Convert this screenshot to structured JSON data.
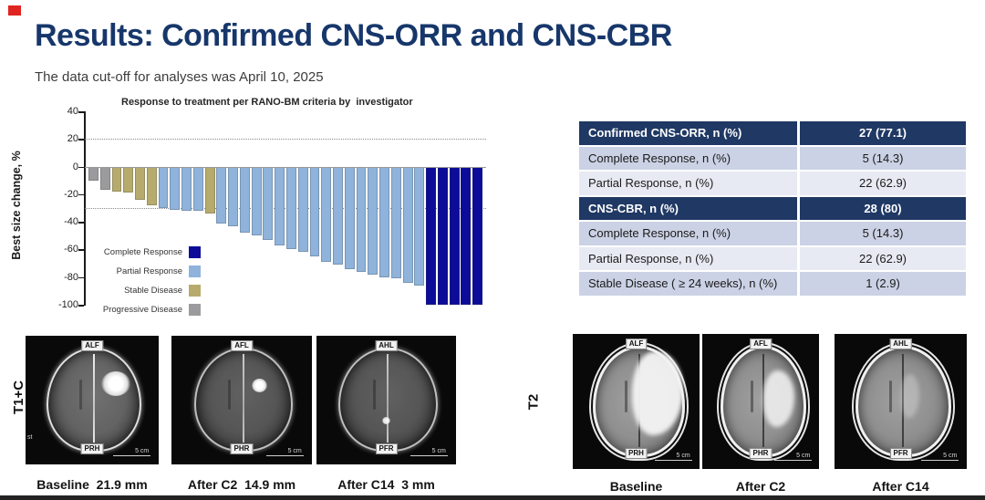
{
  "slide": {
    "title": "Results: Confirmed CNS-ORR and CNS-CBR",
    "subtitle": "The data cut-off for analyses was April 10, 2025"
  },
  "chart_data": {
    "type": "bar",
    "title": "Response to treatment per RANO-BM criteria by  investigator",
    "ylabel": "Best size change, %",
    "ylim": [
      -100,
      40
    ],
    "yticks": [
      40,
      20,
      0,
      -20,
      -40,
      -60,
      -80,
      -100
    ],
    "reference_lines": [
      20,
      -30
    ],
    "grid": "off",
    "legend_position": "lower-left",
    "legend": [
      {
        "label": "Complete Response",
        "color": "#0c0c99"
      },
      {
        "label": "Partial Response",
        "color": "#8fb3da"
      },
      {
        "label": "Stable Disease",
        "color": "#b6ab6c"
      },
      {
        "label": "Progressive Disease",
        "color": "#9b9b9d"
      }
    ],
    "bars": [
      {
        "value": -10,
        "category": "Progressive Disease"
      },
      {
        "value": -17,
        "category": "Progressive Disease"
      },
      {
        "value": -18,
        "category": "Stable Disease"
      },
      {
        "value": -19,
        "category": "Stable Disease"
      },
      {
        "value": -24,
        "category": "Stable Disease"
      },
      {
        "value": -28,
        "category": "Stable Disease"
      },
      {
        "value": -30,
        "category": "Partial Response"
      },
      {
        "value": -31,
        "category": "Partial Response"
      },
      {
        "value": -32,
        "category": "Partial Response"
      },
      {
        "value": -32,
        "category": "Partial Response"
      },
      {
        "value": -34,
        "category": "Stable Disease"
      },
      {
        "value": -41,
        "category": "Partial Response"
      },
      {
        "value": -43,
        "category": "Partial Response"
      },
      {
        "value": -48,
        "category": "Partial Response"
      },
      {
        "value": -50,
        "category": "Partial Response"
      },
      {
        "value": -53,
        "category": "Partial Response"
      },
      {
        "value": -57,
        "category": "Partial Response"
      },
      {
        "value": -60,
        "category": "Partial Response"
      },
      {
        "value": -62,
        "category": "Partial Response"
      },
      {
        "value": -65,
        "category": "Partial Response"
      },
      {
        "value": -69,
        "category": "Partial Response"
      },
      {
        "value": -71,
        "category": "Partial Response"
      },
      {
        "value": -74,
        "category": "Partial Response"
      },
      {
        "value": -76,
        "category": "Partial Response"
      },
      {
        "value": -78,
        "category": "Partial Response"
      },
      {
        "value": -80,
        "category": "Partial Response"
      },
      {
        "value": -81,
        "category": "Partial Response"
      },
      {
        "value": -84,
        "category": "Partial Response"
      },
      {
        "value": -86,
        "category": "Partial Response"
      },
      {
        "value": -100,
        "category": "Complete Response"
      },
      {
        "value": -100,
        "category": "Complete Response"
      },
      {
        "value": -100,
        "category": "Complete Response"
      },
      {
        "value": -100,
        "category": "Complete Response"
      },
      {
        "value": -100,
        "category": "Complete Response"
      }
    ]
  },
  "results_table": {
    "rows": [
      {
        "label": "Confirmed CNS-ORR, n (%)",
        "value": "27 (77.1)",
        "style": "header"
      },
      {
        "label": "Complete Response, n (%)",
        "value": "5 (14.3)",
        "style": "dark"
      },
      {
        "label": "Partial Response, n (%)",
        "value": "22 (62.9)",
        "style": "light"
      },
      {
        "label": "CNS-CBR, n (%)",
        "value": "28 (80)",
        "style": "header"
      },
      {
        "label": "Complete Response, n (%)",
        "value": "5 (14.3)",
        "style": "dark"
      },
      {
        "label": "Partial Response, n (%)",
        "value": "22 (62.9)",
        "style": "light"
      },
      {
        "label": "Stable Disease ( ≥ 24 weeks), n (%)",
        "value": "1 (2.9)",
        "style": "dark"
      }
    ]
  },
  "mri": {
    "t1c": {
      "row_label": "T1+C",
      "corner_note": "st",
      "panels": [
        {
          "top_label": "ALF",
          "bottom_label": "PRH",
          "scale_label": "5 cm",
          "caption": "Baseline  21.9 mm"
        },
        {
          "top_label": "AFL",
          "bottom_label": "PHR",
          "scale_label": "5 cm",
          "caption": "After C2  14.9 mm"
        },
        {
          "top_label": "AHL",
          "bottom_label": "PFR",
          "scale_label": "5 cm",
          "caption": "After C14  3 mm"
        }
      ]
    },
    "t2": {
      "row_label": "T2",
      "panels": [
        {
          "top_label": "ALF",
          "bottom_label": "PRH",
          "scale_label": "5 cm",
          "caption": "Baseline"
        },
        {
          "top_label": "AFL",
          "bottom_label": "PHR",
          "scale_label": "5 cm",
          "caption": "After C2"
        },
        {
          "top_label": "AHL",
          "bottom_label": "PFR",
          "scale_label": "5 cm",
          "caption": "After C14"
        }
      ]
    }
  }
}
